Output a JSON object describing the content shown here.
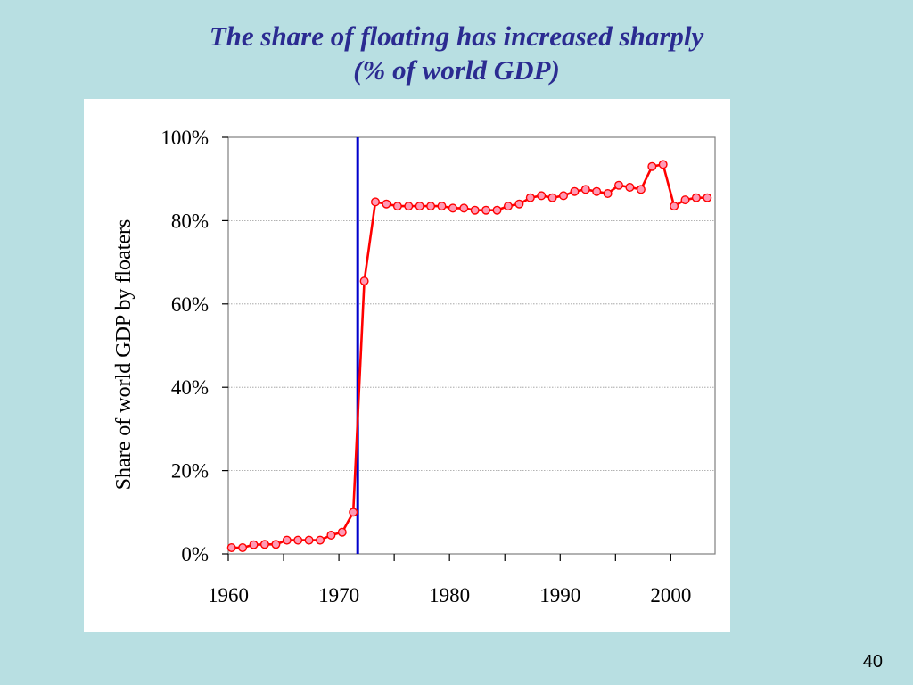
{
  "slide": {
    "title_line1": "The share of floating has increased sharply",
    "title_line2": "(% of world GDP)",
    "page_number": "40"
  },
  "colors": {
    "background": "#b8dfe2",
    "title": "#2b2b91",
    "series_line": "#ff0000",
    "marker_fill": "#ff9ab5",
    "vertical_marker": "#0000cc"
  },
  "chart_data": {
    "type": "line",
    "title": "",
    "xlabel": "",
    "ylabel": "Share of world GDP by floaters",
    "xlim": [
      1960,
      2004
    ],
    "ylim": [
      0,
      100
    ],
    "x_ticks": [
      1960,
      1970,
      1980,
      1990,
      2000
    ],
    "x_tick_labels": [
      "1960",
      "1970",
      "1980",
      "1990",
      "2000"
    ],
    "y_ticks": [
      0,
      20,
      40,
      60,
      80,
      100
    ],
    "y_tick_labels": [
      "0%",
      "20%",
      "40%",
      "60%",
      "80%",
      "100%"
    ],
    "grid": "horizontal dotted",
    "vertical_line_x": 1971.7,
    "series": [
      {
        "x": [
          1960.3,
          1961.3,
          1962.3,
          1963.3,
          1964.3,
          1965.3,
          1966.3,
          1967.3,
          1968.3,
          1969.3,
          1970.3,
          1971.3,
          1972.3,
          1973.3,
          1974.3,
          1975.3,
          1976.3,
          1977.3,
          1978.3,
          1979.3,
          1980.3,
          1981.3,
          1982.3,
          1983.3,
          1984.3,
          1985.3,
          1986.3,
          1987.3,
          1988.3,
          1989.3,
          1990.3,
          1991.3,
          1992.3,
          1993.3,
          1994.3,
          1995.3,
          1996.3,
          1997.3,
          1998.3,
          1999.3,
          2000.3,
          2001.3,
          2002.3,
          2003.3
        ],
        "values": [
          1.5,
          1.5,
          2.2,
          2.3,
          2.3,
          3.3,
          3.3,
          3.3,
          3.3,
          4.5,
          5.2,
          10.0,
          65.5,
          84.5,
          84.0,
          83.5,
          83.5,
          83.5,
          83.5,
          83.5,
          83.0,
          83.0,
          82.5,
          82.5,
          82.5,
          83.5,
          84.0,
          85.5,
          86.0,
          85.5,
          86.0,
          87.0,
          87.5,
          87.0,
          86.5,
          88.5,
          88.0,
          87.5,
          93.0,
          93.5,
          83.5,
          85.0,
          85.5,
          85.5
        ]
      }
    ]
  }
}
